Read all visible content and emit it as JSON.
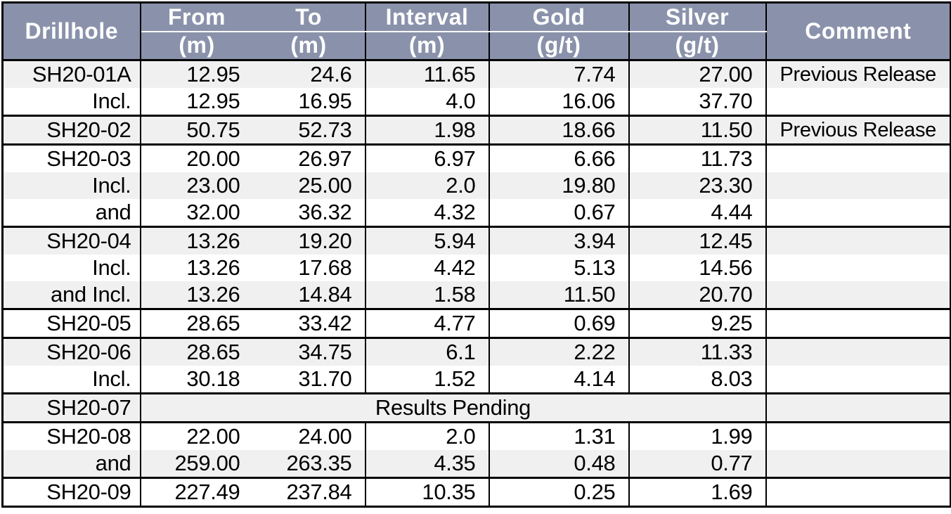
{
  "colors": {
    "header_bg": "#8a92ab",
    "header_text": "#ffffff",
    "row_stripe": "#f0f0f0",
    "row_white": "#ffffff",
    "border_color": "#000000",
    "text_color": "#000000"
  },
  "table": {
    "header": {
      "drillhole": "Drillhole",
      "comment": "Comment",
      "cols": [
        {
          "label": "From",
          "unit": "(m)"
        },
        {
          "label": "To",
          "unit": "(m)"
        },
        {
          "label": "Interval",
          "unit": "(m)"
        },
        {
          "label": "Gold",
          "unit": "(g/t)"
        },
        {
          "label": "Silver",
          "unit": "(g/t)"
        }
      ]
    },
    "rows": [
      {
        "drillhole": "SH20-01A",
        "from": "12.95",
        "to": "24.6",
        "interval": "11.65",
        "gold": "7.74",
        "silver": "27.00",
        "comment": "Previous Release",
        "group_start": true
      },
      {
        "drillhole": "Incl.",
        "from": "12.95",
        "to": "16.95",
        "interval": "4.0",
        "gold": "16.06",
        "silver": "37.70",
        "comment": "",
        "group_start": false
      },
      {
        "drillhole": "SH20-02",
        "from": "50.75",
        "to": "52.73",
        "interval": "1.98",
        "gold": "18.66",
        "silver": "11.50",
        "comment": "Previous Release",
        "group_start": true
      },
      {
        "drillhole": "SH20-03",
        "from": "20.00",
        "to": "26.97",
        "interval": "6.97",
        "gold": "6.66",
        "silver": "11.73",
        "comment": "",
        "group_start": true
      },
      {
        "drillhole": "Incl.",
        "from": "23.00",
        "to": "25.00",
        "interval": "2.0",
        "gold": "19.80",
        "silver": "23.30",
        "comment": "",
        "group_start": false
      },
      {
        "drillhole": "and",
        "from": "32.00",
        "to": "36.32",
        "interval": "4.32",
        "gold": "0.67",
        "silver": "4.44",
        "comment": "",
        "group_start": false
      },
      {
        "drillhole": "SH20-04",
        "from": "13.26",
        "to": "19.20",
        "interval": "5.94",
        "gold": "3.94",
        "silver": "12.45",
        "comment": "",
        "group_start": true
      },
      {
        "drillhole": "Incl.",
        "from": "13.26",
        "to": "17.68",
        "interval": "4.42",
        "gold": "5.13",
        "silver": "14.56",
        "comment": "",
        "group_start": false
      },
      {
        "drillhole": "and Incl.",
        "from": "13.26",
        "to": "14.84",
        "interval": "1.58",
        "gold": "11.50",
        "silver": "20.70",
        "comment": "",
        "group_start": false
      },
      {
        "drillhole": "SH20-05",
        "from": "28.65",
        "to": "33.42",
        "interval": "4.77",
        "gold": "0.69",
        "silver": "9.25",
        "comment": "",
        "group_start": true
      },
      {
        "drillhole": "SH20-06",
        "from": "28.65",
        "to": "34.75",
        "interval": "6.1",
        "gold": "2.22",
        "silver": "11.33",
        "comment": "",
        "group_start": true
      },
      {
        "drillhole": "Incl.",
        "from": "30.18",
        "to": "31.70",
        "interval": "1.52",
        "gold": "4.14",
        "silver": "8.03",
        "comment": "",
        "group_start": false
      },
      {
        "drillhole": "SH20-07",
        "merged": "Results Pending",
        "comment": "",
        "group_start": true
      },
      {
        "drillhole": "SH20-08",
        "from": "22.00",
        "to": "24.00",
        "interval": "2.0",
        "gold": "1.31",
        "silver": "1.99",
        "comment": "",
        "group_start": true
      },
      {
        "drillhole": "and",
        "from": "259.00",
        "to": "263.35",
        "interval": "4.35",
        "gold": "0.48",
        "silver": "0.77",
        "comment": "",
        "group_start": false
      },
      {
        "drillhole": "SH20-09",
        "from": "227.49",
        "to": "237.84",
        "interval": "10.35",
        "gold": "0.25",
        "silver": "1.69",
        "comment": "",
        "group_start": true
      }
    ]
  }
}
